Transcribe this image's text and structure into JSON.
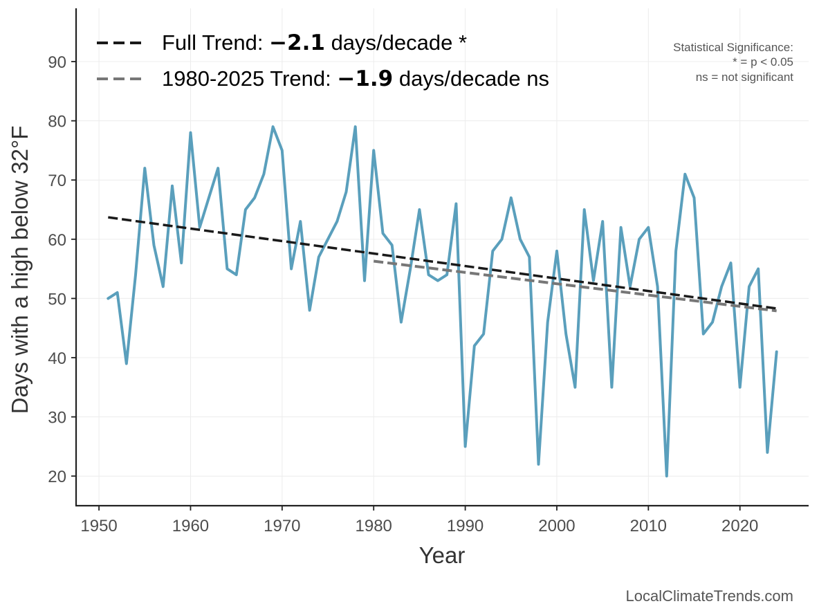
{
  "chart_data": {
    "type": "line",
    "xlabel": "Year",
    "ylabel": "Days with a high below 32°F",
    "xlim": [
      1947.5,
      2027.5
    ],
    "ylim": [
      15,
      99
    ],
    "x_ticks": [
      1950,
      1960,
      1970,
      1980,
      1990,
      2000,
      2010,
      2020
    ],
    "y_ticks": [
      20,
      30,
      40,
      50,
      60,
      70,
      80,
      90
    ],
    "grid": true,
    "legend_position": "top-left",
    "colors": {
      "series": "#5a9fbc",
      "full_trend": "#1a1a1a",
      "recent_trend": "#777777"
    },
    "series": [
      {
        "x": [
          1951,
          1952,
          1953,
          1954,
          1955,
          1956,
          1957,
          1958,
          1959,
          1960,
          1961,
          1962,
          1963,
          1964,
          1965,
          1966,
          1967,
          1968,
          1969,
          1970,
          1971,
          1972,
          1973,
          1974,
          1975,
          1976,
          1977,
          1978,
          1979,
          1980,
          1981,
          1982,
          1983,
          1984,
          1985,
          1986,
          1987,
          1988,
          1989,
          1990,
          1991,
          1992,
          1993,
          1994,
          1995,
          1996,
          1997,
          1998,
          1999,
          2000,
          2001,
          2002,
          2003,
          2004,
          2005,
          2006,
          2007,
          2008,
          2009,
          2010,
          2011,
          2012,
          2013,
          2014,
          2015,
          2016,
          2017,
          2018,
          2019,
          2020,
          2021,
          2022,
          2023,
          2024
        ],
        "values": [
          50,
          51,
          39,
          54,
          72,
          59,
          52,
          69,
          56,
          78,
          62,
          67,
          72,
          55,
          54,
          65,
          67,
          71,
          79,
          75,
          55,
          63,
          48,
          57,
          60,
          63,
          68,
          79,
          53,
          75,
          61,
          59,
          46,
          55,
          65,
          54,
          53,
          54,
          66,
          25,
          42,
          44,
          58,
          60,
          67,
          60,
          57,
          22,
          46,
          58,
          44,
          35,
          65,
          53,
          63,
          35,
          62,
          52,
          60,
          62,
          52,
          20,
          58,
          71,
          67,
          44,
          46,
          52,
          56,
          35,
          52,
          55,
          24,
          41
        ]
      }
    ],
    "trends": [
      {
        "label_prefix": "Full Trend: ",
        "value": "−2.1",
        "label_suffix": " days/decade *",
        "x": [
          1951,
          2024
        ],
        "y": [
          63.7,
          48.3
        ]
      },
      {
        "label_prefix": "1980-2025 Trend: ",
        "value": "−1.9",
        "label_suffix": " days/decade ns",
        "x": [
          1980,
          2024
        ],
        "y": [
          56.3,
          47.9
        ]
      }
    ],
    "annotation": [
      "Statistical Significance:",
      "* = p < 0.05",
      "ns = not significant"
    ],
    "credit": "LocalClimateTrends.com"
  }
}
